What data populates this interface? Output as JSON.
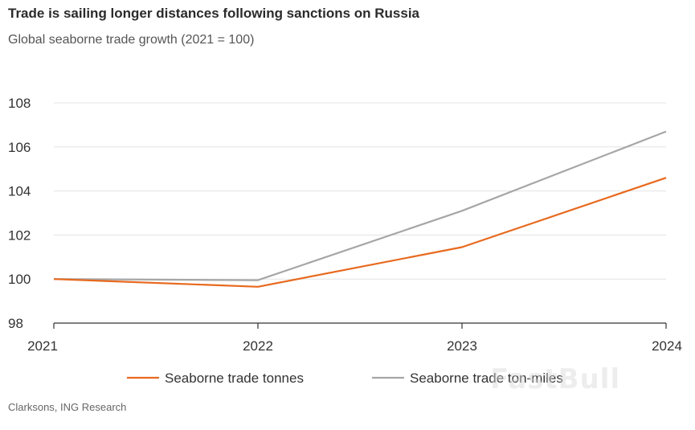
{
  "chart_data": {
    "type": "line",
    "title": "Trade is sailing longer distances following sanctions on Russia",
    "subtitle": "Global seaborne trade growth (2021 = 100)",
    "x": [
      "2021",
      "2022",
      "2023",
      "2024"
    ],
    "ylim": [
      98,
      108
    ],
    "yticks": [
      "98",
      "100",
      "102",
      "104",
      "106",
      "108"
    ],
    "grid": true,
    "legend_position": "bottom",
    "series": [
      {
        "name": "Seaborne trade tonnes",
        "color": "#e8691e",
        "values": [
          100,
          99.65,
          101.45,
          104.6
        ]
      },
      {
        "name": "Seaborne trade ton-miles",
        "color": "#a6a6a6",
        "values": [
          100,
          99.95,
          103.1,
          106.7
        ]
      }
    ],
    "source": "Clarksons, ING Research"
  },
  "watermark": "FastBull"
}
